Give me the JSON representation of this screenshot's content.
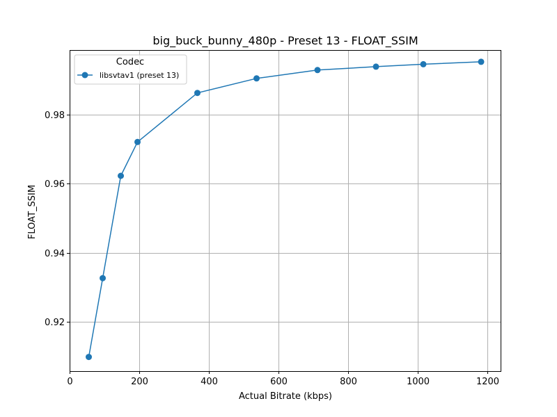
{
  "chart_data": {
    "type": "line",
    "title": "big_buck_bunny_480p - Preset 13 - FLOAT_SSIM",
    "xlabel": "Actual Bitrate (kbps)",
    "ylabel": "FLOAT_SSIM",
    "xlim": [
      0,
      1238
    ],
    "ylim": [
      0.9058,
      0.9987
    ],
    "xticks": [
      0,
      200,
      400,
      600,
      800,
      1000,
      1200
    ],
    "yticks": [
      0.92,
      0.94,
      0.96,
      0.98
    ],
    "xtick_labels": [
      "0",
      "200",
      "400",
      "600",
      "800",
      "1000",
      "1200"
    ],
    "ytick_labels": [
      "0.92",
      "0.94",
      "0.96",
      "0.98"
    ],
    "grid": true,
    "legend": {
      "title": "Codec",
      "placement": "top-left"
    },
    "series": [
      {
        "name": "libsvtav1 (preset 13)",
        "color": "#1f77b4",
        "marker": "circle",
        "x": [
          55,
          95,
          147,
          195,
          367,
          537,
          712,
          880,
          1016,
          1182
        ],
        "y": [
          0.9099,
          0.9327,
          0.9623,
          0.9721,
          0.9863,
          0.9905,
          0.9929,
          0.9939,
          0.9946,
          0.9953
        ]
      }
    ]
  }
}
